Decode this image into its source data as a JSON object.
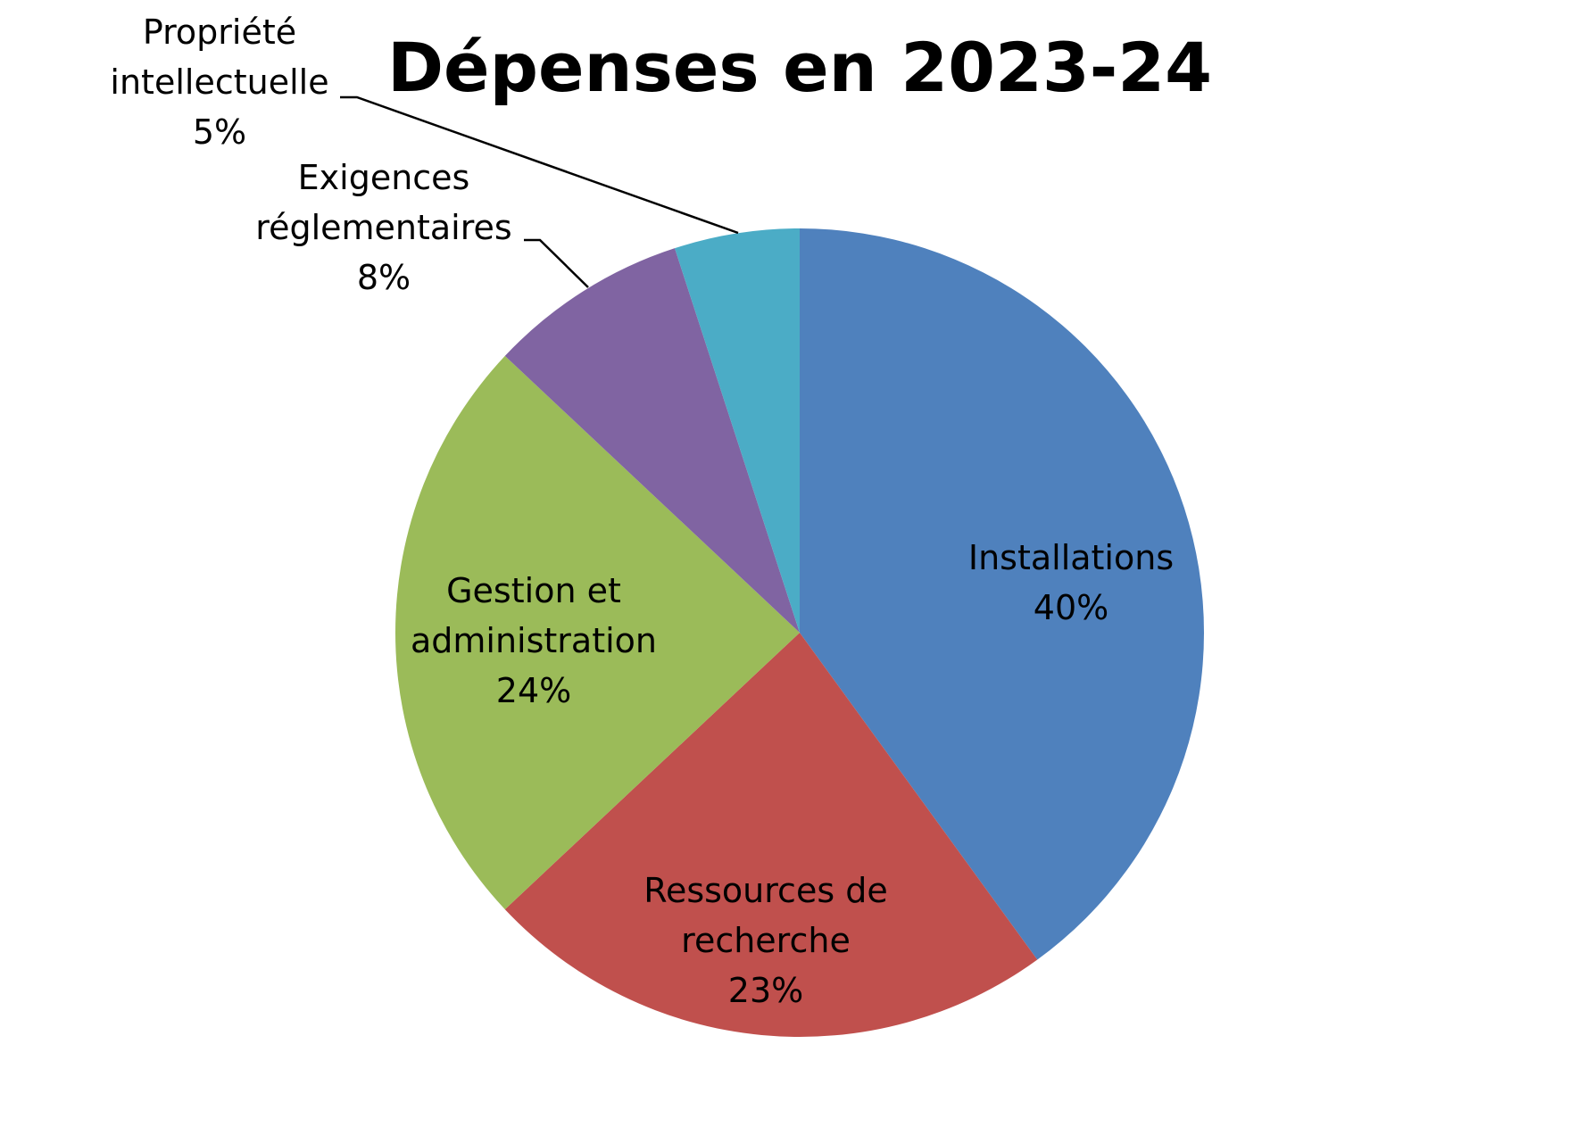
{
  "chart_data": {
    "type": "pie",
    "title": "Dépenses en 2023-24",
    "unit": "%",
    "start_angle_deg": 0,
    "direction": "clockwise",
    "slices": [
      {
        "label_lines": [
          "Installations"
        ],
        "value": 40,
        "value_label": "40%",
        "color": "#4F81BD",
        "label_position": "inside"
      },
      {
        "label_lines": [
          "Ressources de",
          "recherche"
        ],
        "value": 23,
        "value_label": "23%",
        "color": "#C0504D",
        "label_position": "inside"
      },
      {
        "label_lines": [
          "Gestion et",
          "administration"
        ],
        "value": 24,
        "value_label": "24%",
        "color": "#9BBB59",
        "label_position": "inside"
      },
      {
        "label_lines": [
          "Exigences",
          "réglementaires"
        ],
        "value": 8,
        "value_label": "8%",
        "color": "#8064A2",
        "label_position": "outside-callout"
      },
      {
        "label_lines": [
          "Propriété",
          "intellectuelle"
        ],
        "value": 5,
        "value_label": "5%",
        "color": "#4BACC6",
        "label_position": "outside-callout"
      }
    ]
  }
}
